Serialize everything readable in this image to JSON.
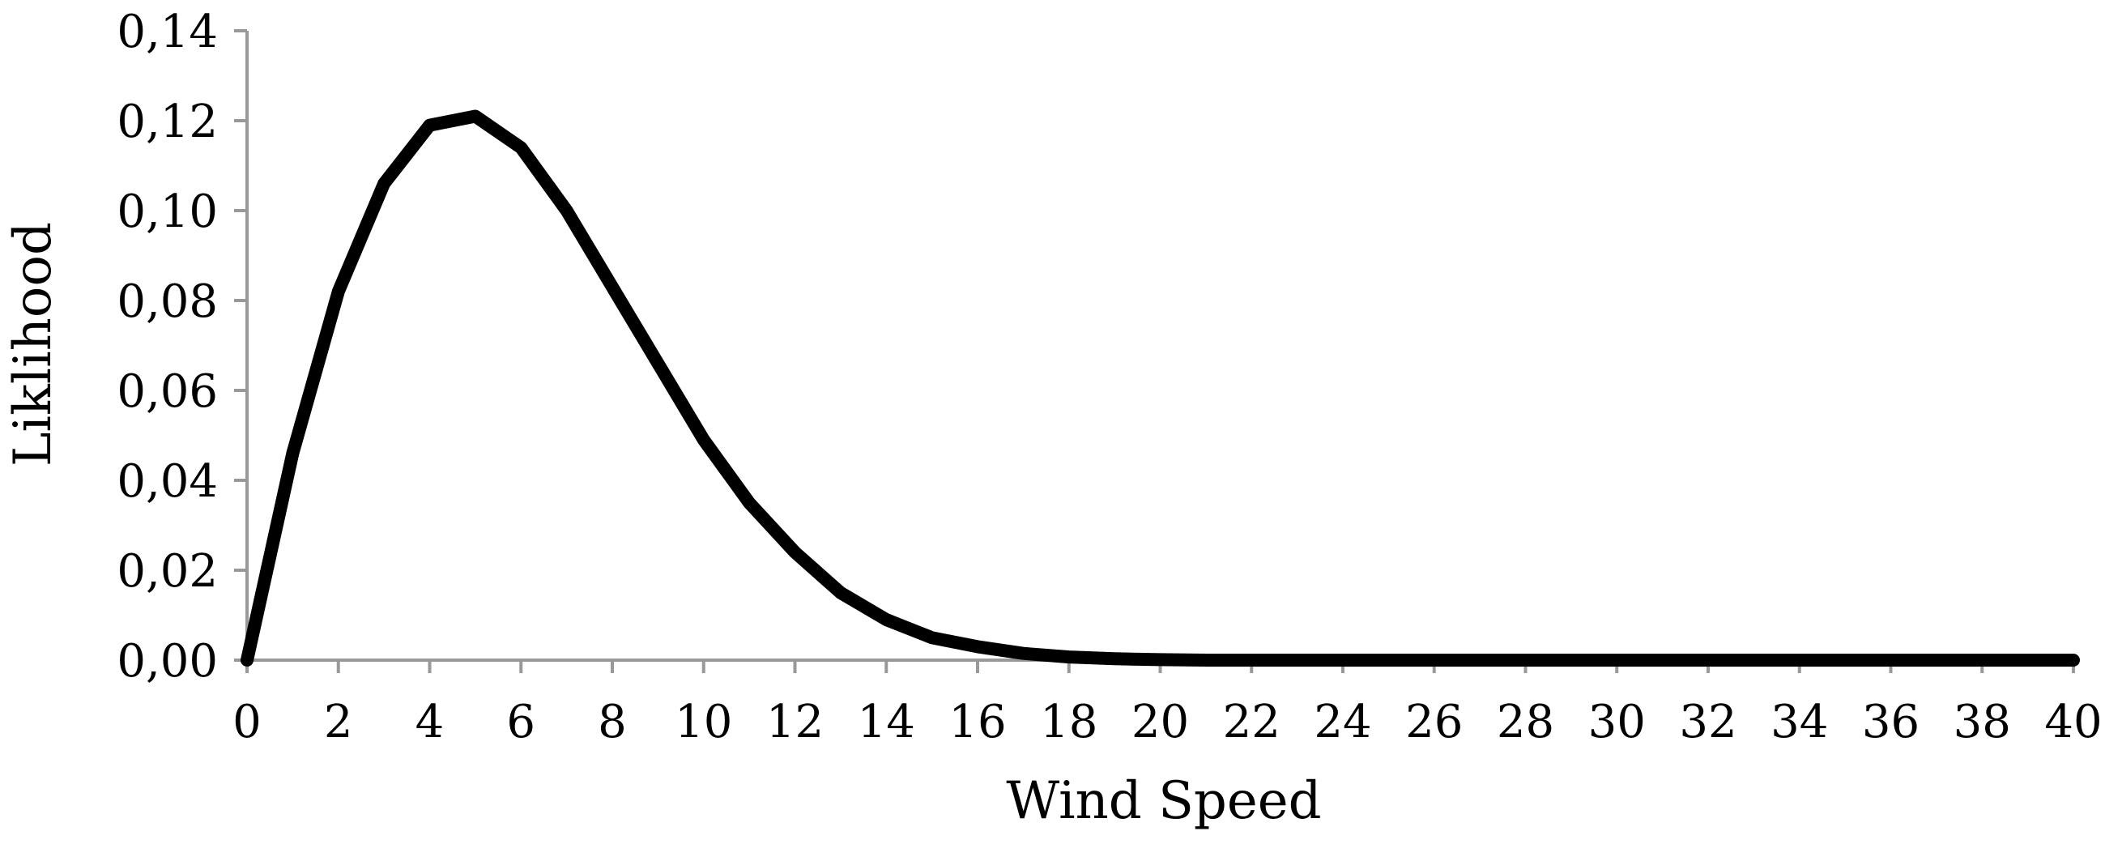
{
  "chart_data": {
    "type": "line",
    "title": "",
    "xlabel": "Wind Speed",
    "ylabel": "Liklihood",
    "xlim": [
      0,
      40
    ],
    "ylim": [
      0,
      0.14
    ],
    "grid": false,
    "legend": "none",
    "x_ticks": [
      0,
      2,
      4,
      6,
      8,
      10,
      12,
      14,
      16,
      18,
      20,
      22,
      24,
      26,
      28,
      30,
      32,
      34,
      36,
      38,
      40
    ],
    "x_tick_labels": [
      "0",
      "2",
      "4",
      "6",
      "8",
      "10",
      "12",
      "14",
      "16",
      "18",
      "20",
      "22",
      "24",
      "26",
      "28",
      "30",
      "32",
      "34",
      "36",
      "38",
      "40"
    ],
    "y_ticks": [
      0,
      0.02,
      0.04,
      0.06,
      0.08,
      0.1,
      0.12,
      0.14
    ],
    "y_tick_labels": [
      "0,00",
      "0,02",
      "0,04",
      "0,06",
      "0,08",
      "0,10",
      "0,12",
      "0,14"
    ],
    "line_color": "#000000",
    "axis_color": "#999999",
    "series": [
      {
        "x": [
          0,
          1,
          2,
          3,
          4,
          5,
          6,
          7,
          8,
          9,
          10,
          11,
          12,
          13,
          14,
          15,
          16,
          17,
          18,
          19,
          20,
          21,
          22,
          23,
          24,
          25,
          26,
          27,
          28,
          29,
          30,
          31,
          32,
          33,
          34,
          35,
          36,
          37,
          38,
          39,
          40
        ],
        "values": [
          0,
          0.046,
          0.082,
          0.106,
          0.119,
          0.121,
          0.114,
          0.1,
          0.083,
          0.066,
          0.049,
          0.035,
          0.024,
          0.015,
          0.009,
          0.005,
          0.003,
          0.0015,
          0.0007,
          0.0003,
          0.0001,
          0,
          0,
          0,
          0,
          0,
          0,
          0,
          0,
          0,
          0,
          0,
          0,
          0,
          0,
          0,
          0,
          0,
          0,
          0,
          0
        ]
      }
    ]
  }
}
